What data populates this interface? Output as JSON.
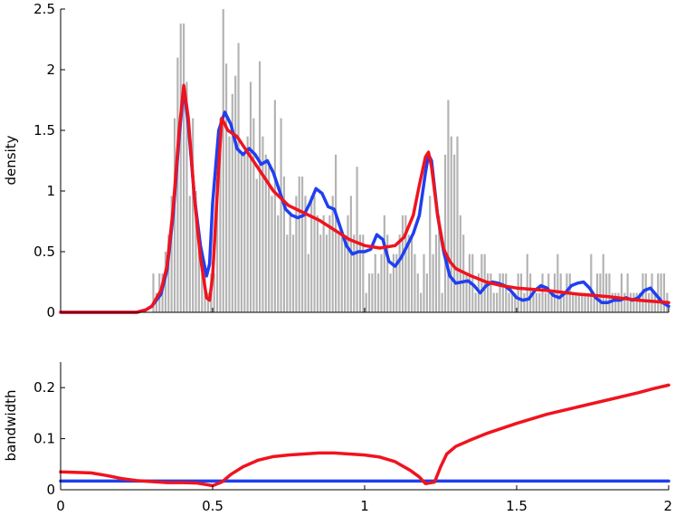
{
  "chart_data": [
    {
      "type": "bar",
      "ylabel": "density",
      "xlim": [
        0,
        2
      ],
      "ylim": [
        0,
        2.5
      ],
      "xticks": [
        0,
        0.5,
        1,
        1.5,
        2
      ],
      "xtick_labels": [
        "0",
        "0.5",
        "1",
        "1.5",
        "2"
      ],
      "yticks": [
        0,
        0.5,
        1,
        1.5,
        2,
        2.5
      ],
      "ytick_labels": [
        "0",
        "0.5",
        "1",
        "1.5",
        "2",
        "2.5"
      ],
      "grid": false,
      "histogram": {
        "bin_width": 0.01,
        "bin_centers": [
          0.305,
          0.315,
          0.325,
          0.335,
          0.345,
          0.355,
          0.365,
          0.375,
          0.385,
          0.395,
          0.405,
          0.415,
          0.425,
          0.435,
          0.445,
          0.455,
          0.465,
          0.475,
          0.485,
          0.495,
          0.505,
          0.515,
          0.525,
          0.535,
          0.545,
          0.555,
          0.565,
          0.575,
          0.585,
          0.595,
          0.605,
          0.615,
          0.625,
          0.635,
          0.645,
          0.655,
          0.665,
          0.675,
          0.685,
          0.695,
          0.705,
          0.715,
          0.725,
          0.735,
          0.745,
          0.755,
          0.765,
          0.775,
          0.785,
          0.795,
          0.805,
          0.815,
          0.825,
          0.835,
          0.845,
          0.855,
          0.865,
          0.875,
          0.885,
          0.895,
          0.905,
          0.915,
          0.925,
          0.935,
          0.945,
          0.955,
          0.965,
          0.975,
          0.985,
          0.995,
          1.005,
          1.015,
          1.025,
          1.035,
          1.045,
          1.055,
          1.065,
          1.075,
          1.085,
          1.095,
          1.105,
          1.115,
          1.125,
          1.135,
          1.145,
          1.155,
          1.165,
          1.175,
          1.185,
          1.195,
          1.205,
          1.215,
          1.225,
          1.235,
          1.245,
          1.255,
          1.265,
          1.275,
          1.285,
          1.295,
          1.305,
          1.315,
          1.325,
          1.335,
          1.345,
          1.355,
          1.365,
          1.375,
          1.385,
          1.395,
          1.405,
          1.415,
          1.425,
          1.435,
          1.445,
          1.455,
          1.465,
          1.475,
          1.485,
          1.495,
          1.505,
          1.515,
          1.525,
          1.535,
          1.545,
          1.555,
          1.565,
          1.575,
          1.585,
          1.595,
          1.605,
          1.615,
          1.625,
          1.635,
          1.645,
          1.655,
          1.665,
          1.675,
          1.685,
          1.695,
          1.705,
          1.715,
          1.725,
          1.735,
          1.745,
          1.755,
          1.765,
          1.775,
          1.785,
          1.795,
          1.805,
          1.815,
          1.825,
          1.835,
          1.845,
          1.855,
          1.865,
          1.875,
          1.885,
          1.895,
          1.905,
          1.915,
          1.925,
          1.935,
          1.945,
          1.955,
          1.965,
          1.975,
          1.985,
          1.995
        ],
        "values": [
          0.32,
          0.16,
          0.32,
          0.32,
          0.5,
          0.64,
          0.96,
          1.6,
          2.1,
          2.38,
          2.38,
          1.9,
          0.96,
          1.6,
          1.0,
          0.5,
          0.32,
          0.32,
          0.16,
          0.32,
          0.32,
          1.1,
          1.6,
          2.5,
          2.05,
          1.45,
          1.8,
          1.95,
          2.22,
          1.3,
          1.3,
          1.45,
          1.9,
          1.6,
          1.1,
          2.07,
          1.45,
          1.3,
          1.2,
          0.96,
          1.75,
          0.8,
          1.6,
          1.12,
          0.64,
          0.8,
          0.64,
          0.96,
          1.12,
          1.12,
          0.96,
          0.48,
          0.96,
          0.96,
          0.8,
          0.64,
          0.8,
          0.64,
          0.8,
          0.96,
          1.3,
          0.64,
          0.64,
          0.64,
          0.8,
          0.96,
          0.64,
          1.2,
          0.64,
          0.64,
          0.16,
          0.32,
          0.32,
          0.48,
          0.32,
          0.48,
          0.8,
          0.64,
          0.32,
          0.48,
          0.48,
          0.64,
          0.8,
          0.8,
          0.64,
          0.64,
          0.48,
          0.32,
          0.16,
          0.48,
          0.32,
          0.96,
          0.48,
          0.64,
          0.8,
          0.16,
          1.3,
          1.75,
          1.45,
          1.3,
          1.45,
          0.8,
          0.64,
          0.32,
          0.48,
          0.48,
          0.16,
          0.32,
          0.48,
          0.48,
          0.32,
          0.32,
          0.16,
          0.16,
          0.32,
          0.32,
          0.32,
          0.16,
          0.16,
          0.16,
          0.32,
          0.32,
          0.16,
          0.48,
          0.32,
          0.16,
          0.16,
          0.16,
          0.32,
          0.16,
          0.32,
          0.16,
          0.32,
          0.48,
          0.32,
          0.16,
          0.32,
          0.32,
          0.16,
          0.16,
          0.16,
          0.16,
          0.16,
          0.16,
          0.48,
          0.16,
          0.32,
          0.32,
          0.48,
          0.32,
          0.32,
          0.16,
          0.16,
          0.16,
          0.32,
          0.16,
          0.32,
          0.16,
          0.16,
          0.16,
          0.16,
          0.32,
          0.32,
          0.16,
          0.32,
          0.16,
          0.32,
          0.32,
          0.32,
          0.16,
          0.16,
          0.16,
          0.16,
          0.16,
          0.32,
          0.16,
          0.16,
          0.16,
          0.16,
          0.16,
          0.32,
          0.32,
          0.32,
          0.32,
          0.16,
          0.16,
          0.16,
          0.16,
          0.16,
          0.16,
          0.16,
          0.16
        ]
      },
      "series": [
        {
          "type": "line",
          "color": "#1f3ff0",
          "x": [
            0,
            0.25,
            0.28,
            0.3,
            0.33,
            0.35,
            0.37,
            0.39,
            0.405,
            0.42,
            0.44,
            0.46,
            0.48,
            0.49,
            0.5,
            0.52,
            0.54,
            0.56,
            0.58,
            0.6,
            0.62,
            0.64,
            0.66,
            0.68,
            0.7,
            0.72,
            0.74,
            0.76,
            0.78,
            0.8,
            0.82,
            0.84,
            0.86,
            0.88,
            0.9,
            0.92,
            0.94,
            0.96,
            0.98,
            1.0,
            1.02,
            1.04,
            1.06,
            1.08,
            1.1,
            1.12,
            1.14,
            1.16,
            1.18,
            1.2,
            1.21,
            1.22,
            1.24,
            1.26,
            1.28,
            1.3,
            1.32,
            1.34,
            1.36,
            1.38,
            1.4,
            1.42,
            1.44,
            1.46,
            1.48,
            1.5,
            1.52,
            1.54,
            1.56,
            1.58,
            1.6,
            1.62,
            1.64,
            1.66,
            1.68,
            1.7,
            1.72,
            1.74,
            1.76,
            1.78,
            1.8,
            1.82,
            1.84,
            1.86,
            1.88,
            1.9,
            1.92,
            1.94,
            1.96,
            1.98,
            2.0
          ],
          "y": [
            0,
            0,
            0.02,
            0.05,
            0.15,
            0.35,
            0.8,
            1.45,
            1.85,
            1.55,
            0.95,
            0.55,
            0.3,
            0.4,
            0.9,
            1.5,
            1.65,
            1.55,
            1.35,
            1.3,
            1.35,
            1.3,
            1.22,
            1.25,
            1.15,
            1.0,
            0.85,
            0.8,
            0.78,
            0.8,
            0.9,
            1.02,
            0.98,
            0.87,
            0.85,
            0.7,
            0.55,
            0.48,
            0.5,
            0.5,
            0.52,
            0.64,
            0.6,
            0.42,
            0.38,
            0.45,
            0.55,
            0.65,
            0.8,
            1.15,
            1.3,
            1.25,
            0.8,
            0.5,
            0.3,
            0.24,
            0.25,
            0.26,
            0.22,
            0.16,
            0.22,
            0.25,
            0.24,
            0.22,
            0.18,
            0.12,
            0.1,
            0.11,
            0.18,
            0.22,
            0.2,
            0.14,
            0.12,
            0.16,
            0.22,
            0.24,
            0.25,
            0.2,
            0.12,
            0.08,
            0.08,
            0.1,
            0.1,
            0.12,
            0.1,
            0.12,
            0.18,
            0.2,
            0.14,
            0.08,
            0.05
          ]
        },
        {
          "type": "line",
          "color": "#f0131e",
          "x": [
            0,
            0.25,
            0.28,
            0.3,
            0.33,
            0.35,
            0.37,
            0.39,
            0.405,
            0.42,
            0.44,
            0.46,
            0.48,
            0.49,
            0.5,
            0.52,
            0.53,
            0.55,
            0.58,
            0.62,
            0.66,
            0.7,
            0.75,
            0.8,
            0.85,
            0.9,
            0.95,
            1.0,
            1.05,
            1.1,
            1.13,
            1.16,
            1.18,
            1.2,
            1.21,
            1.22,
            1.24,
            1.26,
            1.28,
            1.3,
            1.35,
            1.4,
            1.45,
            1.5,
            1.6,
            1.7,
            1.8,
            1.9,
            2.0
          ],
          "y": [
            0,
            0,
            0.02,
            0.05,
            0.18,
            0.38,
            0.85,
            1.5,
            1.87,
            1.6,
            0.95,
            0.45,
            0.12,
            0.1,
            0.3,
            1.2,
            1.6,
            1.5,
            1.45,
            1.3,
            1.15,
            1.0,
            0.88,
            0.82,
            0.76,
            0.68,
            0.6,
            0.55,
            0.53,
            0.55,
            0.62,
            0.8,
            1.05,
            1.28,
            1.32,
            1.2,
            0.8,
            0.52,
            0.42,
            0.36,
            0.3,
            0.25,
            0.22,
            0.2,
            0.18,
            0.15,
            0.13,
            0.1,
            0.08
          ]
        }
      ]
    },
    {
      "type": "line",
      "ylabel": "bandwidth",
      "xlim": [
        0,
        2
      ],
      "ylim": [
        0,
        0.25
      ],
      "xticks": [
        0,
        0.5,
        1,
        1.5,
        2
      ],
      "xtick_labels": [
        "0",
        "0.5",
        "1",
        "1.5",
        "2"
      ],
      "yticks": [
        0,
        0.1,
        0.2
      ],
      "ytick_labels": [
        "0",
        "0.1",
        "0.2"
      ],
      "grid": false,
      "series": [
        {
          "type": "line",
          "color": "#1f3ff0",
          "x": [
            0,
            2
          ],
          "y": [
            0.017,
            0.017
          ]
        },
        {
          "type": "line",
          "color": "#f0131e",
          "x": [
            0,
            0.1,
            0.15,
            0.2,
            0.25,
            0.3,
            0.35,
            0.4,
            0.45,
            0.5,
            0.53,
            0.56,
            0.6,
            0.65,
            0.7,
            0.75,
            0.8,
            0.85,
            0.9,
            0.95,
            1.0,
            1.05,
            1.1,
            1.15,
            1.18,
            1.2,
            1.23,
            1.25,
            1.27,
            1.3,
            1.35,
            1.4,
            1.5,
            1.6,
            1.7,
            1.8,
            1.9,
            1.95,
            2.0
          ],
          "y": [
            0.035,
            0.033,
            0.028,
            0.022,
            0.018,
            0.016,
            0.014,
            0.014,
            0.013,
            0.008,
            0.015,
            0.03,
            0.045,
            0.058,
            0.065,
            0.068,
            0.07,
            0.072,
            0.072,
            0.07,
            0.068,
            0.064,
            0.055,
            0.038,
            0.025,
            0.012,
            0.015,
            0.045,
            0.07,
            0.085,
            0.098,
            0.11,
            0.13,
            0.148,
            0.162,
            0.176,
            0.19,
            0.198,
            0.205
          ]
        }
      ]
    }
  ]
}
